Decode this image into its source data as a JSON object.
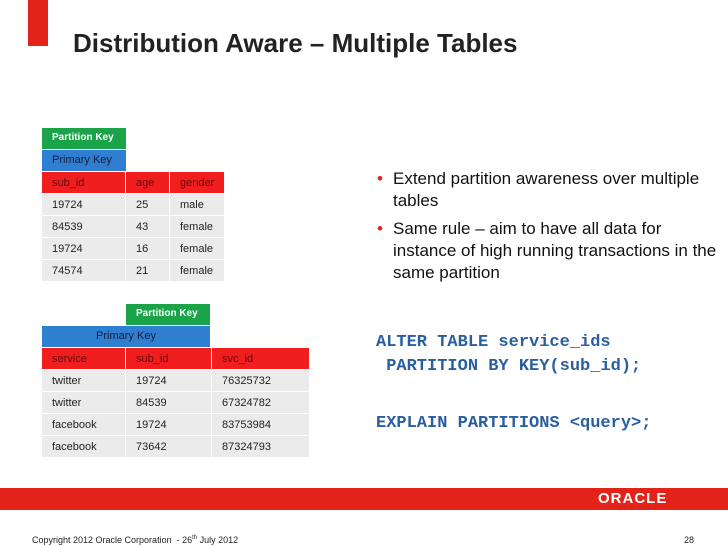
{
  "title": "Distribution Aware – Multiple Tables",
  "table1": {
    "partition_key": "Partition Key",
    "primary_key": "Primary Key",
    "headers": [
      "sub_id",
      "age",
      "gender"
    ],
    "rows": [
      [
        "19724",
        "25",
        "male"
      ],
      [
        "84539",
        "43",
        "female"
      ],
      [
        "19724",
        "16",
        "female"
      ],
      [
        "74574",
        "21",
        "female"
      ]
    ]
  },
  "table2": {
    "partition_key": "Partition Key",
    "primary_key": "Primary Key",
    "headers": [
      "service",
      "sub_id",
      "svc_id"
    ],
    "rows": [
      [
        "twitter",
        "19724",
        "76325732"
      ],
      [
        "twitter",
        "84539",
        "67324782"
      ],
      [
        "facebook",
        "19724",
        "83753984"
      ],
      [
        "facebook",
        "73642",
        "87324793"
      ]
    ]
  },
  "bullets": [
    "Extend partition awareness over multiple tables",
    "Same rule – aim to have all data for instance of high running transactions in the same partition"
  ],
  "code": [
    "ALTER TABLE service_ids",
    " PARTITION BY KEY(sub_id);",
    "EXPLAIN PARTITIONS <query>;"
  ],
  "footer": {
    "logo": "ORACLE",
    "copyright": [
      "Copyright 2012 Oracle Corporation  - 26",
      "th",
      " July 2012"
    ],
    "page": "28"
  }
}
